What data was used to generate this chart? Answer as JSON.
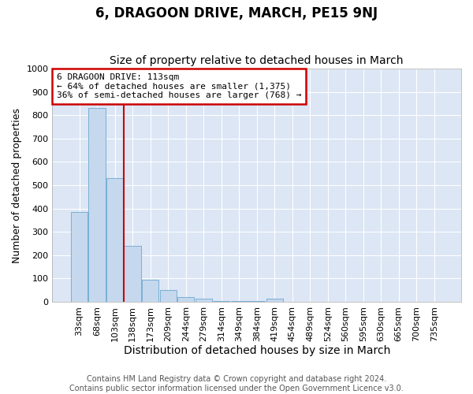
{
  "title": "6, DRAGOON DRIVE, MARCH, PE15 9NJ",
  "subtitle": "Size of property relative to detached houses in March",
  "xlabel": "Distribution of detached houses by size in March",
  "ylabel": "Number of detached properties",
  "categories": [
    "33sqm",
    "68sqm",
    "103sqm",
    "138sqm",
    "173sqm",
    "209sqm",
    "244sqm",
    "279sqm",
    "314sqm",
    "349sqm",
    "384sqm",
    "419sqm",
    "454sqm",
    "489sqm",
    "524sqm",
    "560sqm",
    "595sqm",
    "630sqm",
    "665sqm",
    "700sqm",
    "735sqm"
  ],
  "values": [
    385,
    830,
    530,
    240,
    95,
    52,
    20,
    15,
    3,
    2,
    2,
    12,
    1,
    1,
    1,
    1,
    1,
    1,
    1,
    1,
    1
  ],
  "bar_color": "#c5d8ee",
  "bar_edge_color": "#7aafd4",
  "property_line_x": 2.5,
  "annotation_title": "6 DRAGOON DRIVE: 113sqm",
  "annotation_line1": "← 64% of detached houses are smaller (1,375)",
  "annotation_line2": "36% of semi-detached houses are larger (768) →",
  "annotation_box_color": "#ffffff",
  "annotation_box_edge": "#cc0000",
  "vline_color": "#cc0000",
  "ylim": [
    0,
    1000
  ],
  "fig_background_color": "#ffffff",
  "plot_background_color": "#dce6f5",
  "grid_color": "#ffffff",
  "footer_line1": "Contains HM Land Registry data © Crown copyright and database right 2024.",
  "footer_line2": "Contains public sector information licensed under the Open Government Licence v3.0.",
  "title_fontsize": 12,
  "subtitle_fontsize": 10,
  "xlabel_fontsize": 10,
  "ylabel_fontsize": 9,
  "tick_fontsize": 8,
  "annotation_fontsize": 8,
  "footer_fontsize": 7
}
